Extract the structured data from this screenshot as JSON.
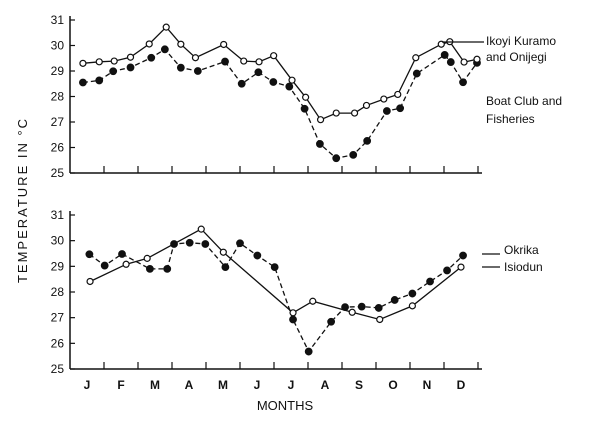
{
  "chart_data": [
    {
      "type": "line",
      "ylabel": "TEMPERATURE IN °C",
      "ylim": [
        25,
        31
      ],
      "yticks": [
        "25",
        "26",
        "27",
        "28",
        "29",
        "30",
        "31"
      ],
      "xlim": [
        0,
        12
      ],
      "grid": false,
      "series": [
        {
          "name": "Ikoyi Kuramo and Onijegi",
          "style": "solid-open",
          "x": [
            0.38,
            0.86,
            1.3,
            1.78,
            2.33,
            2.83,
            3.26,
            3.69,
            4.52,
            5.11,
            5.56,
            5.99,
            6.53,
            6.93,
            7.37,
            7.83,
            8.37,
            8.72,
            9.23,
            9.64,
            10.17,
            10.92,
            11.17,
            11.59,
            11.97
          ],
          "y": [
            29.3,
            29.36,
            29.39,
            29.54,
            30.06,
            30.72,
            30.05,
            29.52,
            30.04,
            29.39,
            29.36,
            29.6,
            28.64,
            27.97,
            27.09,
            27.35,
            27.35,
            27.65,
            27.9,
            28.08,
            29.52,
            30.05,
            30.15,
            29.35,
            29.46
          ]
        },
        {
          "name": "Boat Club and Fisheries",
          "style": "dashed-filled",
          "x": [
            0.38,
            0.86,
            1.27,
            1.78,
            2.39,
            2.79,
            3.26,
            3.76,
            4.56,
            5.05,
            5.54,
            5.98,
            6.45,
            6.9,
            7.35,
            7.83,
            8.33,
            8.74,
            9.32,
            9.71,
            10.2,
            11.02,
            11.2,
            11.56,
            11.97
          ],
          "y": [
            28.55,
            28.63,
            28.99,
            29.14,
            29.52,
            29.85,
            29.13,
            29.0,
            29.37,
            28.5,
            28.95,
            28.57,
            28.39,
            27.52,
            26.14,
            25.58,
            25.71,
            26.26,
            27.43,
            27.54,
            28.9,
            29.63,
            29.35,
            28.56,
            29.32
          ]
        }
      ],
      "labels": [
        "Ikoyi Kuramo",
        "and Onijegi",
        "Boat Club and",
        "Fisheries"
      ]
    },
    {
      "type": "line",
      "xlabel": "MONTHS",
      "ylim": [
        25,
        31
      ],
      "yticks": [
        "25",
        "26",
        "27",
        "28",
        "29",
        "30",
        "31"
      ],
      "xlim": [
        0,
        12
      ],
      "categories": [
        "J",
        "F",
        "M",
        "A",
        "M",
        "J",
        "J",
        "A",
        "S",
        "O",
        "N",
        "D"
      ],
      "grid": false,
      "series": [
        {
          "name": "Okrika",
          "style": "dashed-filled",
          "x": [
            0.57,
            1.02,
            1.53,
            2.35,
            2.86,
            3.06,
            3.52,
            3.98,
            4.57,
            5.0,
            5.51,
            6.02,
            6.56,
            7.02,
            7.68,
            8.09,
            8.58,
            9.08,
            9.55,
            10.07,
            10.59,
            11.09,
            11.56
          ],
          "y": [
            29.47,
            29.03,
            29.48,
            28.9,
            28.9,
            29.87,
            29.92,
            29.87,
            28.97,
            29.9,
            29.42,
            28.97,
            26.93,
            25.68,
            26.84,
            27.41,
            27.43,
            27.38,
            27.69,
            27.94,
            28.41,
            28.84,
            29.42
          ]
        },
        {
          "name": "Isiodun",
          "style": "solid-open",
          "x": [
            0.59,
            1.65,
            2.27,
            3.86,
            4.51,
            6.56,
            7.14,
            8.3,
            9.11,
            10.07,
            11.5
          ],
          "y": [
            28.41,
            29.08,
            29.31,
            30.45,
            29.55,
            27.19,
            27.64,
            27.21,
            26.93,
            27.46,
            28.97
          ]
        }
      ]
    }
  ]
}
